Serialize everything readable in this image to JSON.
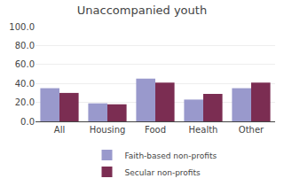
{
  "chart_data": {
    "type": "bar",
    "title": "Unaccompanied youth",
    "categories": [
      "All",
      "Housing",
      "Food",
      "Health",
      "Other"
    ],
    "series": [
      {
        "name": "Faith-based non-profits",
        "color": "#9999CC",
        "values": [
          35.0,
          19.0,
          45.0,
          23.0,
          35.0
        ]
      },
      {
        "name": "Secular non-profits",
        "color": "#7B2D52",
        "values": [
          30.0,
          18.0,
          41.0,
          29.0,
          41.0
        ]
      }
    ],
    "ylim": [
      0,
      100
    ],
    "yticks": [
      {
        "value": 0,
        "label": "0.0"
      },
      {
        "value": 20,
        "label": "20.0"
      },
      {
        "value": 40,
        "label": "40.0"
      },
      {
        "value": 60,
        "label": "60.0"
      },
      {
        "value": 80,
        "label": "80.0"
      },
      {
        "value": 100,
        "label": "100.0"
      }
    ],
    "grid": true,
    "legend": "bottom"
  }
}
